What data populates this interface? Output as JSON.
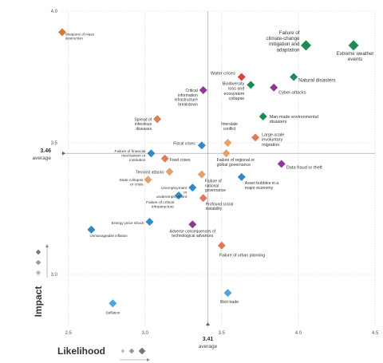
{
  "chart_data": {
    "type": "scatter",
    "title": "",
    "xlabel": "Likelihood",
    "ylabel": "Impact",
    "xlim": [
      2.45,
      4.5
    ],
    "ylim": [
      2.8,
      4.0
    ],
    "x_ticks": [
      "2.5",
      "3.0",
      "3.5",
      "4.0",
      "4.5"
    ],
    "y_ticks": [
      "3.0",
      "3.5",
      "4.0"
    ],
    "average": {
      "x": 3.41,
      "x_value_label": "3.41",
      "x_text": "average",
      "y": 3.46,
      "y_value_label": "3.46",
      "y_text": "average"
    },
    "grid": true,
    "colors": {
      "economic": "#2E8BC7",
      "environmental": "#1E8A55",
      "geopolitical": "#E07B5A",
      "societal": "#E8A06A",
      "technological": "#8B3A96"
    },
    "points": [
      {
        "label": "Weapons of mass destruction",
        "x": 2.46,
        "y": 3.92,
        "color": "#D87833"
      },
      {
        "label": "Failure of climate-change mitigation and adaptation",
        "x": 4.05,
        "y": 3.87,
        "color": "#1E8A55"
      },
      {
        "label": "Extreme weather events",
        "x": 4.36,
        "y": 3.87,
        "color": "#1E8A55"
      },
      {
        "label": "Water crises",
        "x": 3.63,
        "y": 3.75,
        "color": "#D8463A"
      },
      {
        "label": "Natural disasters",
        "x": 3.97,
        "y": 3.75,
        "color": "#1E8A55"
      },
      {
        "label": "Biodiversity loss and ecosystem collapse",
        "x": 3.69,
        "y": 3.72,
        "color": "#1E8A55"
      },
      {
        "label": "Cyber-attacks",
        "x": 3.84,
        "y": 3.71,
        "color": "#8B3A96"
      },
      {
        "label": "Critical information infrastructure breakdown",
        "x": 3.38,
        "y": 3.7,
        "color": "#8B3A96"
      },
      {
        "label": "Spread of infectious diseases",
        "x": 3.08,
        "y": 3.59,
        "color": "#E07B5A"
      },
      {
        "label": "Man-made environmental disasters",
        "x": 3.77,
        "y": 3.6,
        "color": "#1E8A55"
      },
      {
        "label": "Large-scale involuntary migration",
        "x": 3.72,
        "y": 3.52,
        "color": "#E07B5A"
      },
      {
        "label": "Interstate conflict",
        "x": 3.54,
        "y": 3.5,
        "color": "#E8A06A"
      },
      {
        "label": "Fiscal crises",
        "x": 3.37,
        "y": 3.49,
        "color": "#2E8BC7"
      },
      {
        "label": "Failure of financial mechanism or institution",
        "x": 3.04,
        "y": 3.46,
        "color": "#2E8BC7"
      },
      {
        "label": "Food crises",
        "x": 3.13,
        "y": 3.44,
        "color": "#E07B5A"
      },
      {
        "label": "Failure of regional or global governance",
        "x": 3.53,
        "y": 3.46,
        "color": "#E8A06A"
      },
      {
        "label": "Data fraud or theft",
        "x": 3.89,
        "y": 3.42,
        "color": "#8B3A96"
      },
      {
        "label": "Terrorist attacks",
        "x": 3.16,
        "y": 3.39,
        "color": "#E8A06A"
      },
      {
        "label": "Failure of national governance",
        "x": 3.37,
        "y": 3.38,
        "color": "#E8A06A"
      },
      {
        "label": "Asset bubbles in a major economy",
        "x": 3.63,
        "y": 3.37,
        "color": "#2E8BC7"
      },
      {
        "label": "State collapse or crisis",
        "x": 3.02,
        "y": 3.36,
        "color": "#E8A06A"
      },
      {
        "label": "Unemployment or underemployment",
        "x": 3.31,
        "y": 3.33,
        "color": "#2E8BC7"
      },
      {
        "label": "Failure of critical infrastructure",
        "x": 3.22,
        "y": 3.3,
        "color": "#2E8BC7"
      },
      {
        "label": "Profound social instability",
        "x": 3.38,
        "y": 3.29,
        "color": "#E07B5A"
      },
      {
        "label": "Energy price shock",
        "x": 3.03,
        "y": 3.2,
        "color": "#2E8BC7"
      },
      {
        "label": "Adverse consequences of technological advances",
        "x": 3.31,
        "y": 3.19,
        "color": "#8B3A96"
      },
      {
        "label": "Unmanageable inflation",
        "x": 2.65,
        "y": 3.17,
        "color": "#2E8BC7"
      },
      {
        "label": "Failure of urban planning",
        "x": 3.5,
        "y": 3.11,
        "color": "#E07B5A"
      },
      {
        "label": "Illicit trade",
        "x": 3.54,
        "y": 2.93,
        "color": "#4BA8DA"
      },
      {
        "label": "Deflation",
        "x": 2.79,
        "y": 2.89,
        "color": "#4BA8DA"
      }
    ]
  }
}
